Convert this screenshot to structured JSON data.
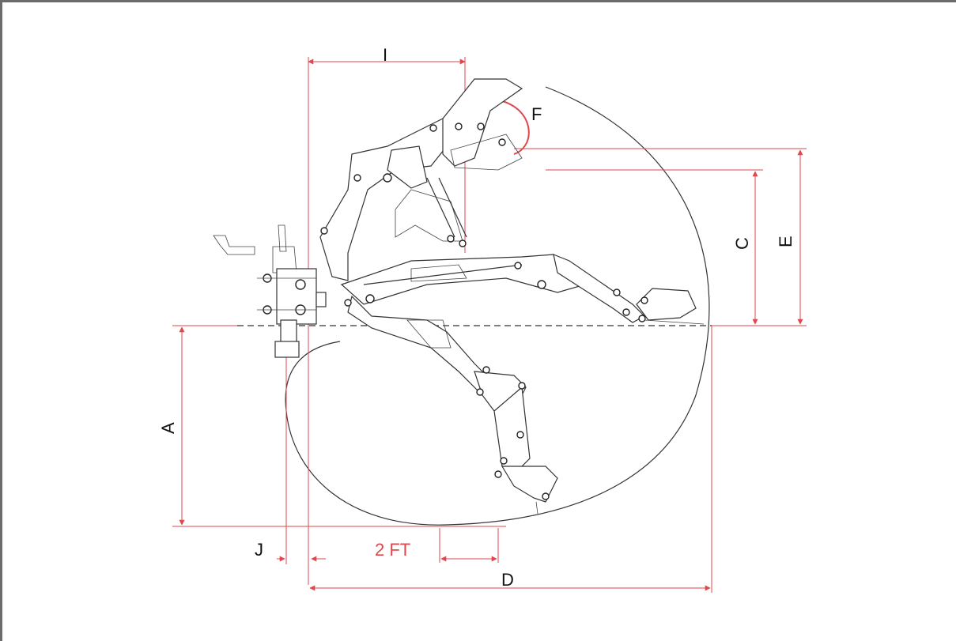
{
  "labels": {
    "a": "A",
    "c": "C",
    "d": "D",
    "e": "E",
    "f": "F",
    "i": "I",
    "j": "J",
    "scale": "2 FT"
  },
  "colors": {
    "dimension": "#e0474c",
    "outline": "#333333",
    "frame": "#6b6b6b"
  }
}
